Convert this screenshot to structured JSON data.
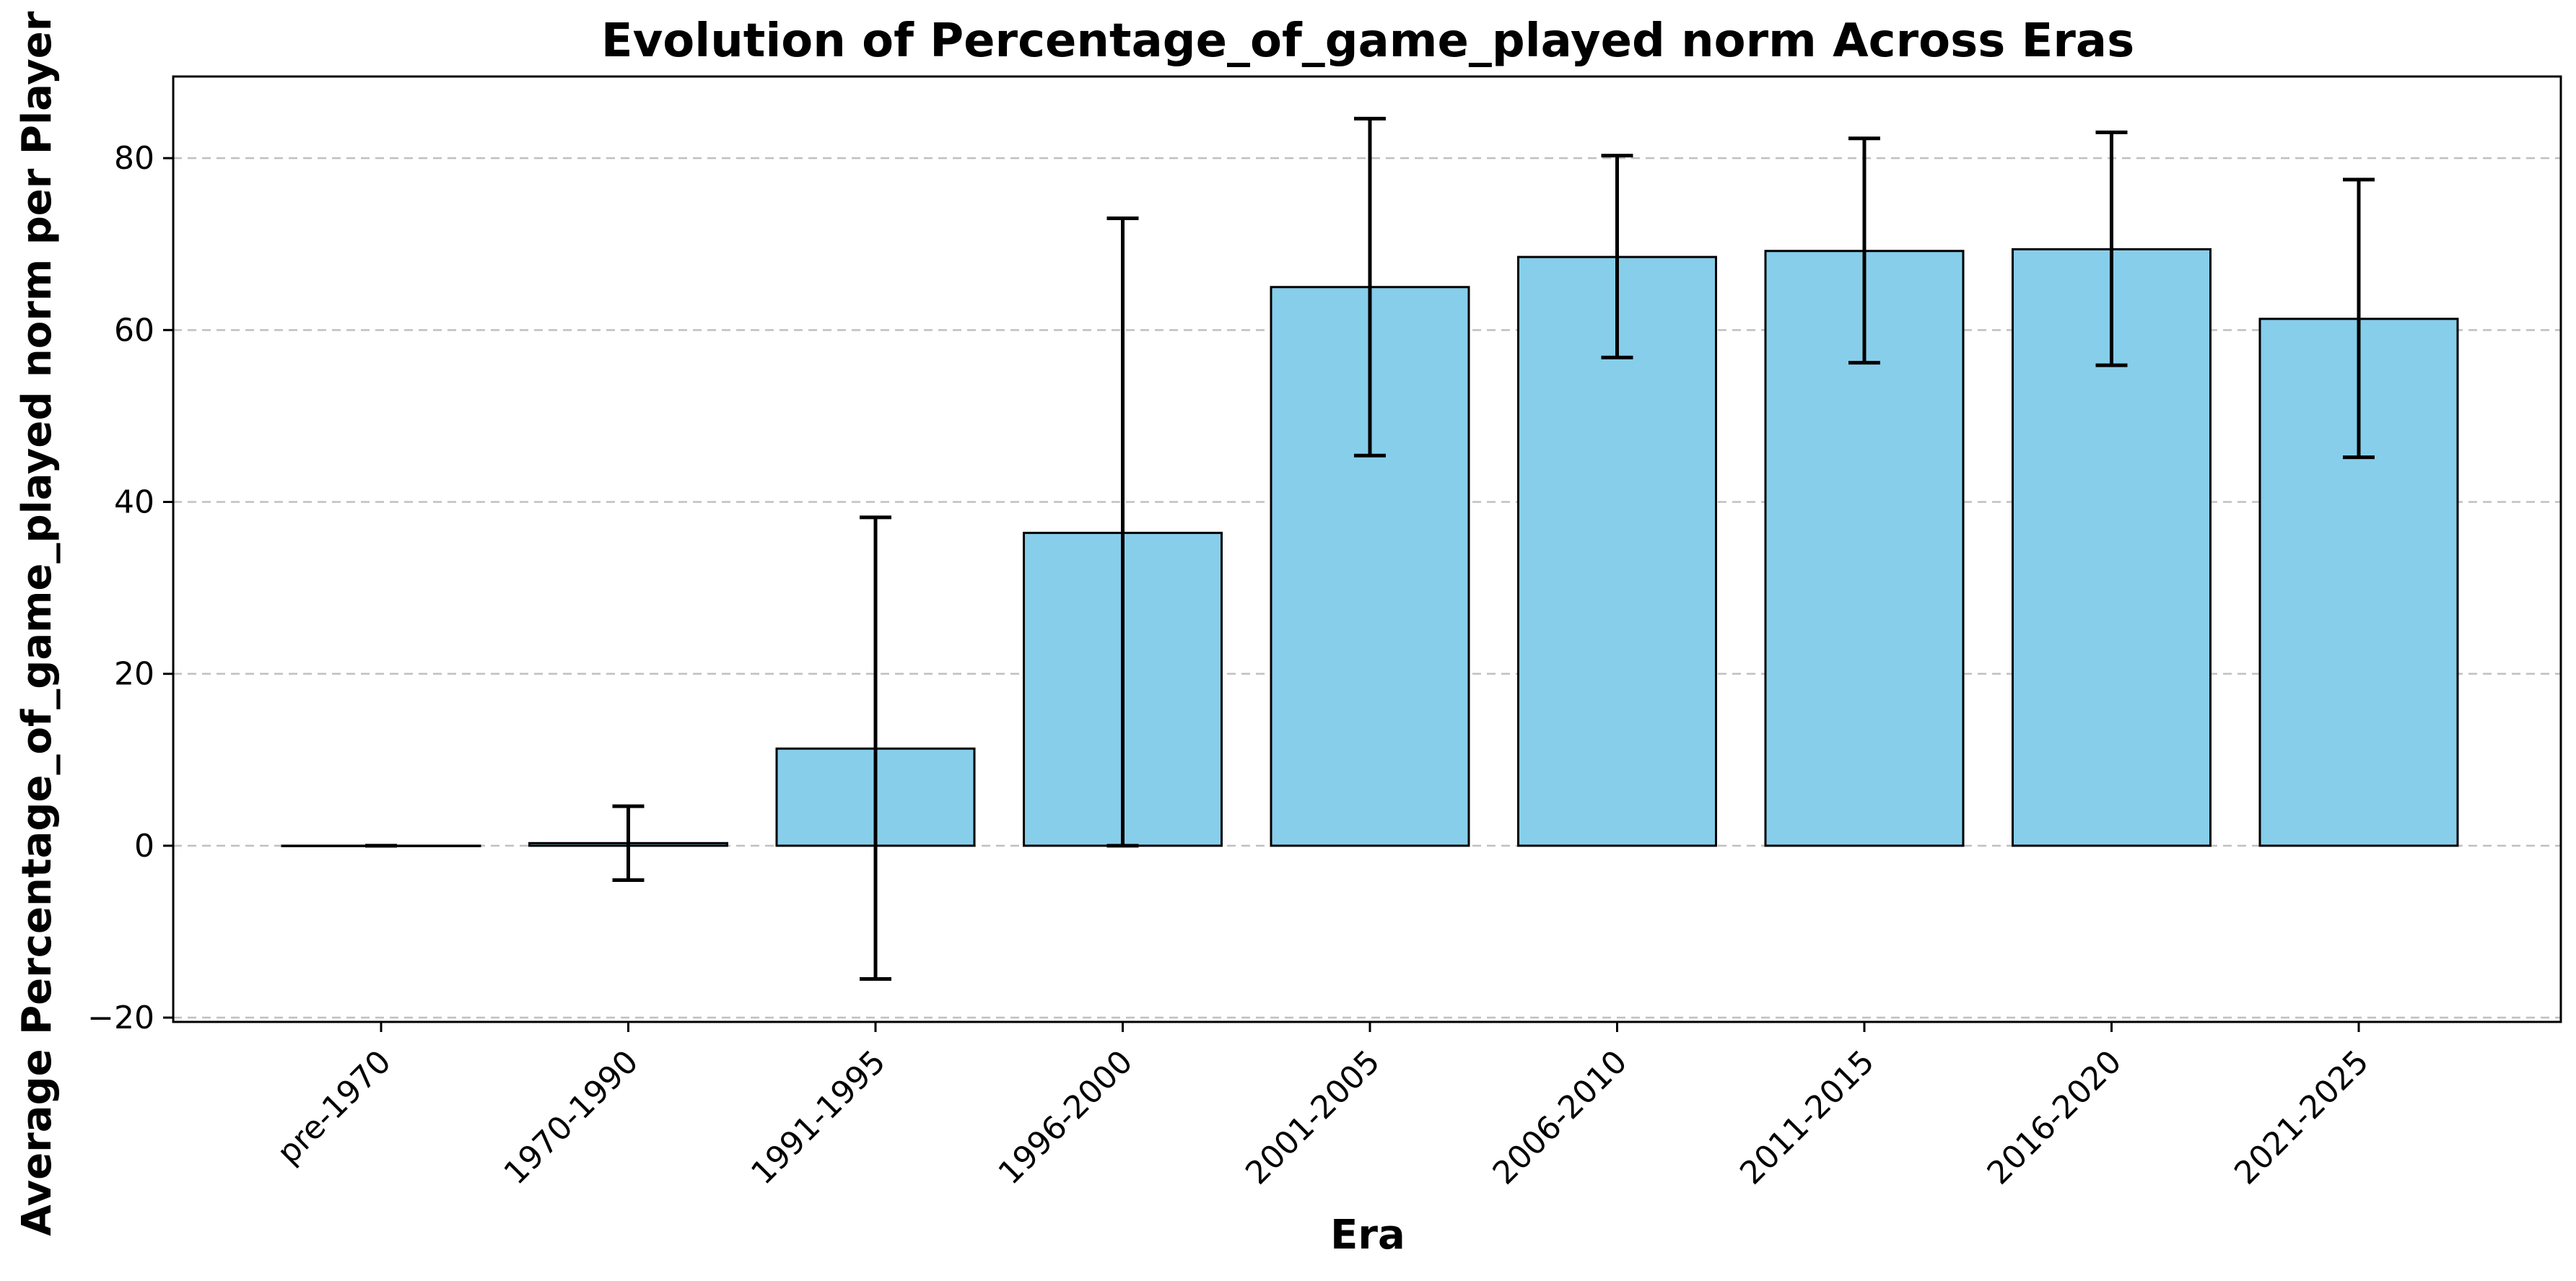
{
  "chart_data": {
    "type": "bar",
    "title": "Evolution of Percentage_of_game_played norm Across Eras",
    "xlabel": "Era",
    "ylabel": "Average Percentage_of_game_played norm per Player per Era",
    "categories": [
      "pre-1970",
      "1970-1990",
      "1991-1995",
      "1996-2000",
      "2001-2005",
      "2006-2010",
      "2011-2015",
      "2016-2020",
      "2021-2025"
    ],
    "values": [
      0.0,
      0.3,
      11.3,
      36.4,
      65.0,
      68.5,
      69.2,
      69.4,
      61.3
    ],
    "error_bars": [
      {
        "low": 0.0,
        "high": 0.0
      },
      {
        "low": -4.0,
        "high": 4.6
      },
      {
        "low": -15.5,
        "high": 38.2
      },
      {
        "low": 0.0,
        "high": 73.0
      },
      {
        "low": 45.4,
        "high": 84.6
      },
      {
        "low": 56.8,
        "high": 80.3
      },
      {
        "low": 56.2,
        "high": 82.3
      },
      {
        "low": 55.9,
        "high": 83.0
      },
      {
        "low": 45.2,
        "high": 77.5
      }
    ],
    "yticks": [
      -20,
      0,
      20,
      40,
      60,
      80
    ],
    "ylim": [
      -20.5,
      89.5
    ],
    "grid": "horizontal dashed",
    "legend": "none",
    "colors": {
      "bar_fill": "#87CEEB",
      "bar_edge": "#000000",
      "error_bar": "#000000",
      "grid": "#c0c0c0"
    }
  }
}
